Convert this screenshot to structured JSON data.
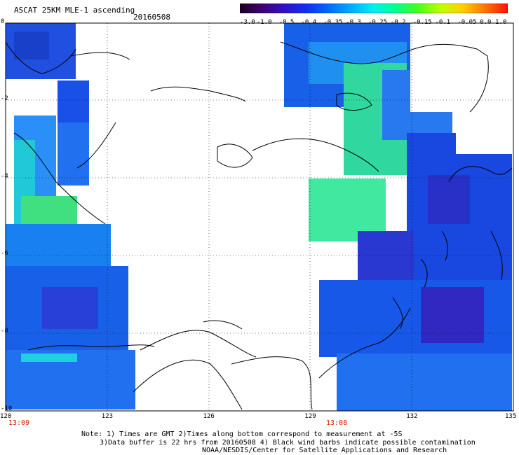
{
  "header": {
    "title": "ASCAT 25KM MLE-1 ascending",
    "date": "20160508"
  },
  "colorbar": {
    "labels": [
      "-3.0",
      "-1.0",
      "-0.5",
      "-0.4",
      "-0.35",
      "-0.3",
      "-0.25",
      "-0.2",
      "-0.15",
      "-0.1",
      "-0.05",
      "0.0",
      "1.0"
    ],
    "colors": [
      "#2a0030",
      "#3a0060",
      "#4a1090",
      "#2020d0",
      "#0040ff",
      "#0080ff",
      "#00c0ff",
      "#00ffff",
      "#00ff80",
      "#40ff00",
      "#c0ff00",
      "#ffc000",
      "#ff4000"
    ]
  },
  "map": {
    "lon_min": 120,
    "lon_max": 135,
    "lat_min": -10,
    "lat_max": 0,
    "x_ticks": [
      "120",
      "123",
      "126",
      "129",
      "132",
      "135"
    ],
    "y_ticks": [
      "0",
      "-2",
      "-4",
      "-6",
      "-8",
      "-10"
    ],
    "times": [
      "13:09",
      "13:08"
    ]
  },
  "notes": {
    "line1": "Note: 1) Times are GMT 2)Times along bottom correspond to measurement at -5S",
    "line2": "3)Data buffer is 22 hrs from 20160508 4) Black wind barbs indicate possible contamination",
    "line3": "NOAA/NESDIS/Center for Satellite Applications and Research"
  }
}
